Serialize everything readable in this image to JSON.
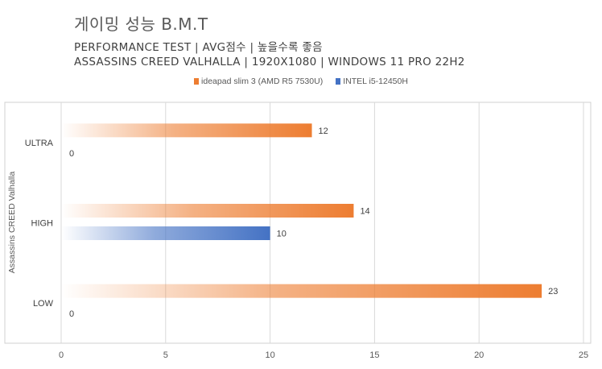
{
  "header": {
    "title": "게이밍 성능 B.M.T",
    "subtitle1": "PERFORMANCE TEST | AVG점수 | 높을수록 좋음",
    "subtitle2": "ASSASSINS CREED VALHALLA | 1920X1080 | WINDOWS 11 PRO 22H2"
  },
  "chart_data": {
    "type": "bar",
    "orientation": "horizontal",
    "ylabel": "Assassins CREED Valhalla",
    "categories": [
      "ULTRA",
      "HIGH",
      "LOW"
    ],
    "series": [
      {
        "name": "ideapad slim 3 (AMD R5 7530U)",
        "color": "#ed7d31",
        "values": [
          12,
          14,
          23
        ]
      },
      {
        "name": "INTEL i5-12450H",
        "color": "#4472c4",
        "values": [
          0,
          10,
          0
        ]
      }
    ],
    "xlim": [
      0,
      25
    ],
    "xticks": [
      0,
      5,
      10,
      15,
      20,
      25
    ],
    "grid": true,
    "legend_position": "top"
  }
}
